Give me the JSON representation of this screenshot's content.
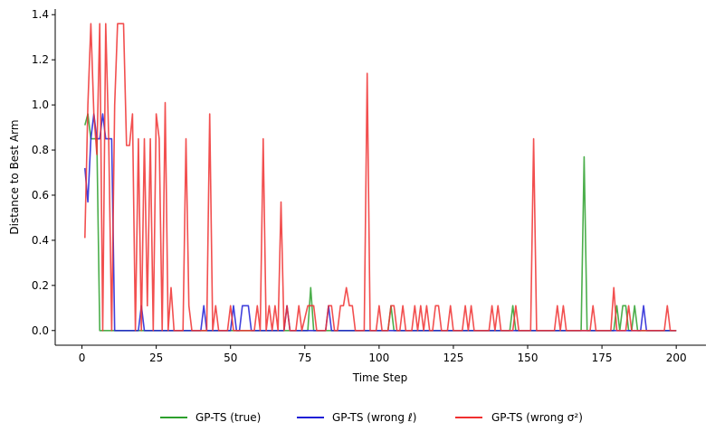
{
  "chart_data": {
    "type": "line",
    "xlabel": "Time Step",
    "ylabel": "Distance to Best Arm",
    "xlim": [
      -9,
      210
    ],
    "ylim": [
      -0.065,
      1.425
    ],
    "xticks": [
      0,
      25,
      50,
      75,
      100,
      125,
      150,
      175,
      200
    ],
    "yticks": [
      0.0,
      0.2,
      0.4,
      0.6,
      0.8,
      1.0,
      1.2,
      1.4
    ],
    "ytick_labels": [
      "0.0",
      "0.2",
      "0.4",
      "0.6",
      "0.8",
      "1.0",
      "1.2",
      "1.4"
    ],
    "grid": false,
    "legend_position": "bottom-center",
    "series": [
      {
        "name": "GP-TS (true)",
        "color": "#2ca02c",
        "points": [
          [
            1,
            0.91
          ],
          [
            2,
            0.96
          ],
          [
            3,
            0.85
          ],
          [
            4,
            0.85
          ],
          [
            5,
            0.85
          ],
          [
            6,
            0.0
          ],
          [
            7,
            0.0
          ],
          [
            8,
            0.0
          ],
          [
            76,
            0.0
          ],
          [
            77,
            0.19
          ],
          [
            78,
            0.0
          ],
          [
            103,
            0.0
          ],
          [
            104,
            0.11
          ],
          [
            105,
            0.0
          ],
          [
            144,
            0.0
          ],
          [
            145,
            0.11
          ],
          [
            146,
            0.0
          ],
          [
            168,
            0.0
          ],
          [
            169,
            0.77
          ],
          [
            170,
            0.0
          ],
          [
            179,
            0.0
          ],
          [
            180,
            0.11
          ],
          [
            181,
            0.0
          ],
          [
            182,
            0.11
          ],
          [
            183,
            0.11
          ],
          [
            184,
            0.0
          ],
          [
            185,
            0.0
          ],
          [
            186,
            0.11
          ],
          [
            187,
            0.0
          ],
          [
            200,
            0.0
          ]
        ]
      },
      {
        "name": "GP-TS (wrong ℓ)",
        "color": "#1f1fd6",
        "points": [
          [
            1,
            0.72
          ],
          [
            2,
            0.57
          ],
          [
            3,
            0.85
          ],
          [
            4,
            0.96
          ],
          [
            5,
            0.85
          ],
          [
            6,
            0.85
          ],
          [
            7,
            0.96
          ],
          [
            8,
            0.85
          ],
          [
            9,
            0.85
          ],
          [
            10,
            0.85
          ],
          [
            11,
            0.0
          ],
          [
            19,
            0.0
          ],
          [
            20,
            0.11
          ],
          [
            21,
            0.0
          ],
          [
            40,
            0.0
          ],
          [
            41,
            0.11
          ],
          [
            42,
            0.0
          ],
          [
            50,
            0.0
          ],
          [
            51,
            0.11
          ],
          [
            52,
            0.0
          ],
          [
            53,
            0.0
          ],
          [
            54,
            0.11
          ],
          [
            55,
            0.11
          ],
          [
            56,
            0.11
          ],
          [
            57,
            0.0
          ],
          [
            68,
            0.0
          ],
          [
            69,
            0.11
          ],
          [
            70,
            0.0
          ],
          [
            82,
            0.0
          ],
          [
            83,
            0.11
          ],
          [
            84,
            0.0
          ],
          [
            188,
            0.0
          ],
          [
            189,
            0.11
          ],
          [
            190,
            0.0
          ],
          [
            200,
            0.0
          ]
        ]
      },
      {
        "name": "GP-TS (wrong σ²)",
        "color": "#f03030",
        "points": [
          [
            1,
            0.41
          ],
          [
            2,
            1.0
          ],
          [
            3,
            1.36
          ],
          [
            4,
            0.96
          ],
          [
            5,
            0.78
          ],
          [
            6,
            1.36
          ],
          [
            7,
            0.0
          ],
          [
            8,
            1.36
          ],
          [
            9,
            0.85
          ],
          [
            10,
            0.0
          ],
          [
            11,
            1.0
          ],
          [
            12,
            1.36
          ],
          [
            13,
            1.36
          ],
          [
            14,
            1.36
          ],
          [
            15,
            0.82
          ],
          [
            16,
            0.82
          ],
          [
            17,
            0.96
          ],
          [
            18,
            0.0
          ],
          [
            19,
            0.85
          ],
          [
            20,
            0.0
          ],
          [
            21,
            0.85
          ],
          [
            22,
            0.11
          ],
          [
            23,
            0.85
          ],
          [
            24,
            0.0
          ],
          [
            25,
            0.96
          ],
          [
            26,
            0.85
          ],
          [
            27,
            0.0
          ],
          [
            28,
            1.01
          ],
          [
            29,
            0.0
          ],
          [
            30,
            0.19
          ],
          [
            31,
            0.0
          ],
          [
            34,
            0.0
          ],
          [
            35,
            0.85
          ],
          [
            36,
            0.11
          ],
          [
            37,
            0.0
          ],
          [
            42,
            0.0
          ],
          [
            43,
            0.96
          ],
          [
            44,
            0.0
          ],
          [
            45,
            0.11
          ],
          [
            46,
            0.0
          ],
          [
            49,
            0.0
          ],
          [
            50,
            0.11
          ],
          [
            51,
            0.0
          ],
          [
            58,
            0.0
          ],
          [
            59,
            0.11
          ],
          [
            60,
            0.0
          ],
          [
            61,
            0.85
          ],
          [
            62,
            0.0
          ],
          [
            63,
            0.11
          ],
          [
            64,
            0.0
          ],
          [
            65,
            0.11
          ],
          [
            66,
            0.0
          ],
          [
            67,
            0.57
          ],
          [
            68,
            0.0
          ],
          [
            69,
            0.11
          ],
          [
            70,
            0.0
          ],
          [
            72,
            0.0
          ],
          [
            73,
            0.11
          ],
          [
            74,
            0.0
          ],
          [
            76,
            0.11
          ],
          [
            77,
            0.11
          ],
          [
            78,
            0.11
          ],
          [
            79,
            0.0
          ],
          [
            82,
            0.0
          ],
          [
            83,
            0.11
          ],
          [
            84,
            0.11
          ],
          [
            85,
            0.0
          ],
          [
            86,
            0.0
          ],
          [
            87,
            0.11
          ],
          [
            88,
            0.11
          ],
          [
            89,
            0.19
          ],
          [
            90,
            0.11
          ],
          [
            91,
            0.11
          ],
          [
            92,
            0.0
          ],
          [
            95,
            0.0
          ],
          [
            96,
            1.14
          ],
          [
            97,
            0.0
          ],
          [
            99,
            0.0
          ],
          [
            100,
            0.11
          ],
          [
            101,
            0.0
          ],
          [
            103,
            0.0
          ],
          [
            104,
            0.11
          ],
          [
            105,
            0.11
          ],
          [
            106,
            0.0
          ],
          [
            107,
            0.0
          ],
          [
            108,
            0.11
          ],
          [
            109,
            0.0
          ],
          [
            111,
            0.0
          ],
          [
            112,
            0.11
          ],
          [
            113,
            0.0
          ],
          [
            114,
            0.11
          ],
          [
            115,
            0.0
          ],
          [
            116,
            0.11
          ],
          [
            117,
            0.0
          ],
          [
            118,
            0.0
          ],
          [
            119,
            0.11
          ],
          [
            120,
            0.11
          ],
          [
            121,
            0.0
          ],
          [
            123,
            0.0
          ],
          [
            124,
            0.11
          ],
          [
            125,
            0.0
          ],
          [
            128,
            0.0
          ],
          [
            129,
            0.11
          ],
          [
            130,
            0.0
          ],
          [
            131,
            0.11
          ],
          [
            132,
            0.0
          ],
          [
            137,
            0.0
          ],
          [
            138,
            0.11
          ],
          [
            139,
            0.0
          ],
          [
            140,
            0.11
          ],
          [
            141,
            0.0
          ],
          [
            145,
            0.0
          ],
          [
            146,
            0.11
          ],
          [
            147,
            0.0
          ],
          [
            151,
            0.0
          ],
          [
            152,
            0.85
          ],
          [
            153,
            0.0
          ],
          [
            159,
            0.0
          ],
          [
            160,
            0.11
          ],
          [
            161,
            0.0
          ],
          [
            162,
            0.11
          ],
          [
            163,
            0.0
          ],
          [
            171,
            0.0
          ],
          [
            172,
            0.11
          ],
          [
            173,
            0.0
          ],
          [
            178,
            0.0
          ],
          [
            179,
            0.19
          ],
          [
            180,
            0.0
          ],
          [
            183,
            0.0
          ],
          [
            184,
            0.11
          ],
          [
            185,
            0.0
          ],
          [
            196,
            0.0
          ],
          [
            197,
            0.11
          ],
          [
            198,
            0.0
          ],
          [
            200,
            0.0
          ]
        ]
      }
    ]
  }
}
